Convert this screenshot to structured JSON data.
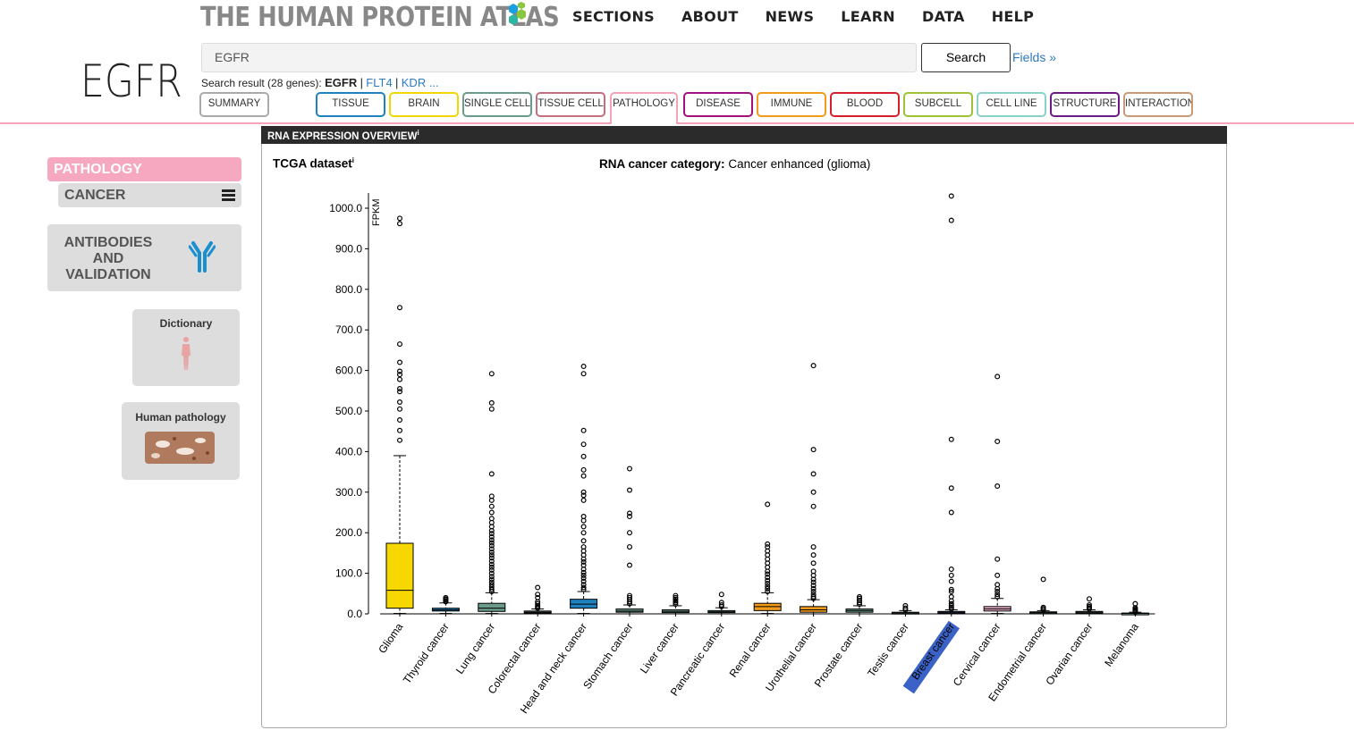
{
  "header": {
    "logo_text": "THE HUMAN PROTEIN ATLAS",
    "nav": [
      "SECTIONS",
      "ABOUT",
      "NEWS",
      "LEARN",
      "DATA",
      "HELP"
    ]
  },
  "gene": "EGFR",
  "search": {
    "value": "EGFR",
    "button_label": "Search",
    "fields_link": "Fields »",
    "result_prefix": "Search result (28 genes):",
    "current": "EGFR",
    "others": [
      "FLT4",
      "KDR ..."
    ]
  },
  "tabs": [
    {
      "label": "SUMMARY",
      "color": "#aaaaaa"
    },
    {
      "label": "TISSUE",
      "color": "#1f82c0"
    },
    {
      "label": "BRAIN",
      "color": "#f2d600"
    },
    {
      "label": "SINGLE CELL",
      "color": "#6b9b8a"
    },
    {
      "label": "TISSUE CELL",
      "color": "#c46f7c"
    },
    {
      "label": "PATHOLOGY",
      "color": "#f4a4b8",
      "active": true
    },
    {
      "label": "DISEASE",
      "color": "#a4117f"
    },
    {
      "label": "IMMUNE",
      "color": "#f29b1b"
    },
    {
      "label": "BLOOD",
      "color": "#d3202a"
    },
    {
      "label": "SUBCELL",
      "color": "#9cc434"
    },
    {
      "label": "CELL LINE",
      "color": "#8ad1cc"
    },
    {
      "label": "STRUCTURE",
      "color": "#6a1b87"
    },
    {
      "label": "INTERACTION",
      "color": "#c89a75"
    }
  ],
  "sidebar": {
    "pathology": "PATHOLOGY",
    "cancer": "CANCER",
    "antibodies": "ANTIBODIES AND VALIDATION",
    "dictionary": "Dictionary",
    "human_pathology": "Human pathology"
  },
  "panel": {
    "header": "RNA EXPRESSION OVERVIEW",
    "header_sup": "i",
    "dataset": "TCGA dataset",
    "dataset_sup": "i",
    "category_label": "RNA cancer category:",
    "category_value": "Cancer enhanced (glioma)"
  },
  "chart_data": {
    "type": "boxplot",
    "ylabel": "FPKM",
    "ylim": [
      0,
      1000
    ],
    "yticks": [
      "0.0",
      "100.0",
      "200.0",
      "300.0",
      "400.0",
      "500.0",
      "600.0",
      "700.0",
      "800.0",
      "900.0",
      "1000.0"
    ],
    "highlighted_category": "Breast cancer",
    "categories": [
      {
        "name": "Glioma",
        "color": "#f6d800",
        "q1": 14,
        "median": 58,
        "q3": 174,
        "whisker_low": 1,
        "whisker_high": 390,
        "outliers": [
          428,
          452,
          478,
          505,
          522,
          548,
          555,
          578,
          590,
          598,
          620,
          665,
          755,
          962,
          975
        ]
      },
      {
        "name": "Thyroid cancer",
        "color": "#1f82c0",
        "q1": 7,
        "median": 10,
        "q3": 14,
        "whisker_low": 1,
        "whisker_high": 27,
        "outliers": [
          30,
          32,
          35,
          37,
          40
        ]
      },
      {
        "name": "Lung cancer",
        "color": "#6b9b8a",
        "q1": 6,
        "median": 14,
        "q3": 26,
        "whisker_low": 1,
        "whisker_high": 52,
        "outliers": [
          55,
          60,
          66,
          72,
          78,
          85,
          92,
          100,
          108,
          115,
          122,
          130,
          138,
          145,
          152,
          160,
          168,
          175,
          182,
          190,
          198,
          205,
          215,
          225,
          235,
          250,
          265,
          280,
          290,
          345,
          505,
          520,
          592
        ]
      },
      {
        "name": "Colorectal cancer",
        "color": "#6b9b8a",
        "q1": 2,
        "median": 4,
        "q3": 7,
        "whisker_low": 0,
        "whisker_high": 12,
        "outliers": [
          14,
          17,
          20,
          25,
          30,
          40,
          48,
          65
        ]
      },
      {
        "name": "Head and neck cancer",
        "color": "#1f82c0",
        "q1": 14,
        "median": 24,
        "q3": 36,
        "whisker_low": 1,
        "whisker_high": 55,
        "outliers": [
          60,
          65,
          72,
          80,
          88,
          95,
          102,
          110,
          120,
          128,
          135,
          145,
          155,
          165,
          180,
          200,
          215,
          230,
          240,
          280,
          292,
          300,
          340,
          355,
          388,
          418,
          452,
          592,
          610
        ]
      },
      {
        "name": "Stomach cancer",
        "color": "#6b9b8a",
        "q1": 4,
        "median": 7,
        "q3": 12,
        "whisker_low": 0,
        "whisker_high": 22,
        "outliers": [
          25,
          30,
          35,
          40,
          45,
          120,
          165,
          200,
          240,
          248,
          305,
          358
        ]
      },
      {
        "name": "Liver cancer",
        "color": "#6b9b8a",
        "q1": 3,
        "median": 6,
        "q3": 10,
        "whisker_low": 0,
        "whisker_high": 20,
        "outliers": [
          24,
          28,
          32,
          36,
          40,
          45
        ]
      },
      {
        "name": "Pancreatic cancer",
        "color": "#6b9b8a",
        "q1": 3,
        "median": 5,
        "q3": 8,
        "whisker_low": 0,
        "whisker_high": 15,
        "outliers": [
          18,
          22,
          28,
          48
        ]
      },
      {
        "name": "Renal cancer",
        "color": "#f29b1b",
        "q1": 8,
        "median": 18,
        "q3": 26,
        "whisker_low": 1,
        "whisker_high": 52,
        "outliers": [
          55,
          62,
          68,
          75,
          82,
          90,
          98,
          105,
          115,
          125,
          135,
          145,
          155,
          165,
          172,
          270
        ]
      },
      {
        "name": "Urothelial cancer",
        "color": "#f29b1b",
        "q1": 4,
        "median": 10,
        "q3": 18,
        "whisker_low": 0,
        "whisker_high": 35,
        "outliers": [
          38,
          42,
          48,
          55,
          62,
          70,
          78,
          85,
          95,
          105,
          125,
          145,
          165,
          265,
          300,
          345,
          405,
          612
        ]
      },
      {
        "name": "Prostate cancer",
        "color": "#6b9b8a",
        "q1": 4,
        "median": 8,
        "q3": 12,
        "whisker_low": 0,
        "whisker_high": 20,
        "outliers": [
          24,
          28,
          33,
          38,
          42
        ]
      },
      {
        "name": "Testis cancer",
        "color": "#6b9b8a",
        "q1": 1,
        "median": 2,
        "q3": 4,
        "whisker_low": 0,
        "whisker_high": 8,
        "outliers": [
          10,
          14,
          20
        ]
      },
      {
        "name": "Breast cancer",
        "color": "#3b63c7",
        "q1": 2,
        "median": 4,
        "q3": 6,
        "whisker_low": 0,
        "whisker_high": 10,
        "outliers": [
          12,
          16,
          20,
          25,
          32,
          42,
          55,
          60,
          80,
          95,
          110,
          250,
          310,
          430,
          970,
          1030
        ]
      },
      {
        "name": "Cervical cancer",
        "color": "#e4a8c4",
        "q1": 7,
        "median": 12,
        "q3": 18,
        "whisker_low": 1,
        "whisker_high": 38,
        "outliers": [
          42,
          48,
          55,
          62,
          72,
          95,
          135,
          315,
          425,
          585
        ]
      },
      {
        "name": "Endometrial cancer",
        "color": "#6b9b8a",
        "q1": 1,
        "median": 3,
        "q3": 5,
        "whisker_low": 0,
        "whisker_high": 8,
        "outliers": [
          10,
          13,
          16,
          85
        ]
      },
      {
        "name": "Ovarian cancer",
        "color": "#6b9b8a",
        "q1": 2,
        "median": 4,
        "q3": 6,
        "whisker_low": 0,
        "whisker_high": 10,
        "outliers": [
          12,
          15,
          18,
          22,
          37
        ]
      },
      {
        "name": "Melanoma",
        "color": "#6b9b8a",
        "q1": 0,
        "median": 1,
        "q3": 2,
        "whisker_low": 0,
        "whisker_high": 4,
        "outliers": [
          5,
          7,
          9,
          12,
          15,
          25
        ]
      }
    ]
  }
}
